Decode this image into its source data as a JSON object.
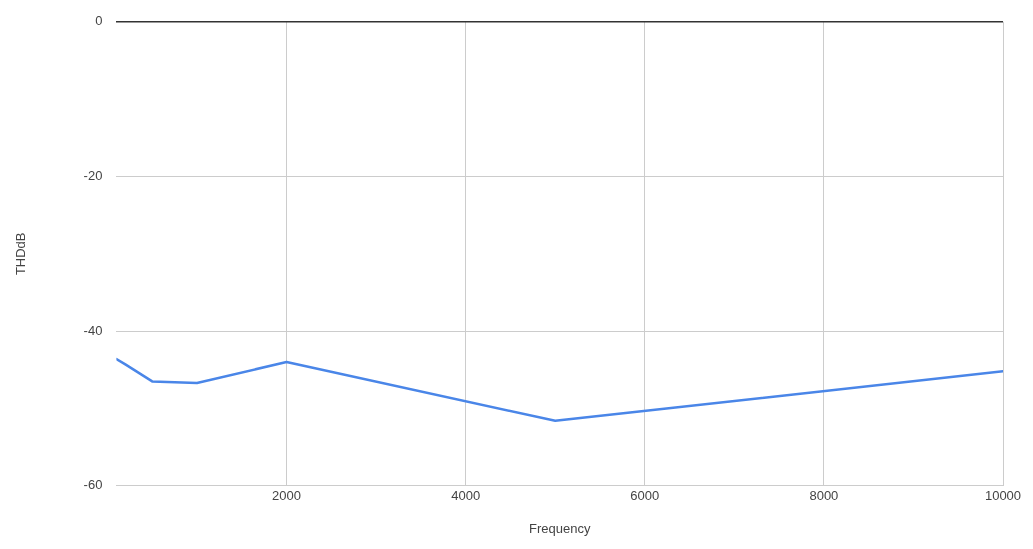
{
  "chart_data": {
    "type": "line",
    "xlabel": "Frequency",
    "ylabel": "THDdB",
    "x": [
      100,
      200,
      500,
      1000,
      2000,
      5000,
      10000
    ],
    "series": [
      {
        "color": "#4a86e8",
        "values": [
          -43.6,
          -44.3,
          -46.5,
          -46.7,
          -44.0,
          -51.6,
          -45.2
        ]
      }
    ],
    "xlim": [
      100,
      10000
    ],
    "xticks": [
      2000,
      4000,
      6000,
      8000,
      10000
    ],
    "ylim": [
      -60,
      0
    ],
    "yticks": [
      -60,
      -40,
      -20,
      0
    ],
    "grid": true,
    "legend": false,
    "marker": "none",
    "line_style": "solid"
  }
}
